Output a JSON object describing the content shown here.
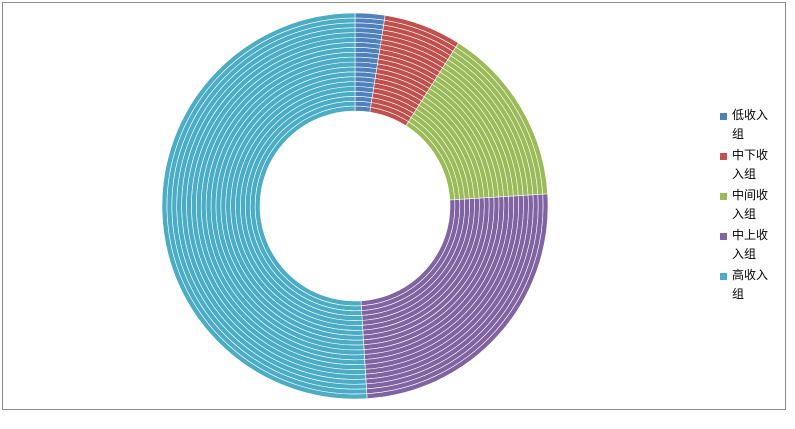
{
  "chart_data": {
    "type": "pie",
    "style": "donut with multiple concentric rings",
    "categories": [
      "低收入组",
      "中下收入组",
      "中间收入组",
      "中上收入组",
      "高收入组"
    ],
    "values": [
      2.5,
      6.5,
      15.0,
      25.0,
      51.0
    ],
    "colors": [
      "#4f81bd",
      "#c0504d",
      "#9bbb59",
      "#8064a2",
      "#4bacc6"
    ],
    "legend_position": "right",
    "title": ""
  },
  "legend": {
    "items": [
      {
        "label": "低收入组",
        "color": "#4f81bd"
      },
      {
        "label": "中下收入组",
        "color": "#c0504d"
      },
      {
        "label": "中间收入组",
        "color": "#9bbb59"
      },
      {
        "label": "中上收入组",
        "color": "#8064a2"
      },
      {
        "label": "高收入组",
        "color": "#4bacc6"
      }
    ]
  }
}
